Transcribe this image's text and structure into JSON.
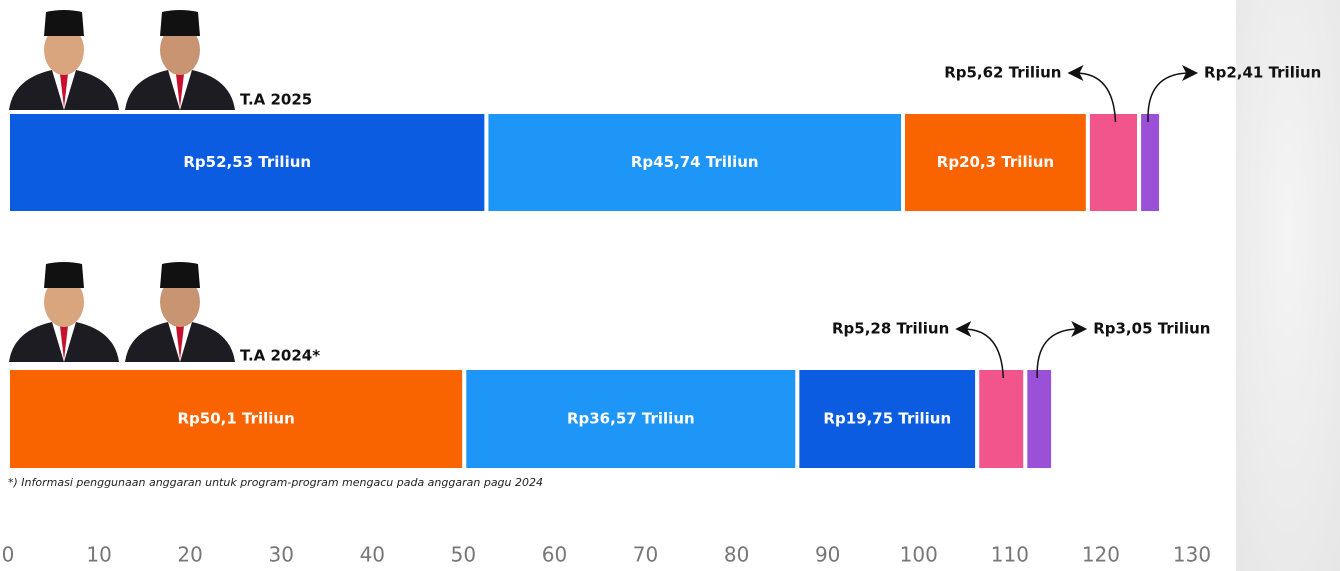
{
  "chart_data": {
    "type": "stacked-barh",
    "categories": [
      "T.A 2025",
      "T.A 2024*"
    ],
    "stacks": [
      {
        "values": [
          52.53,
          45.74,
          20.3,
          5.62,
          2.41
        ],
        "value_labels": [
          "Rp52,53 Triliun",
          "Rp45,74 Triliun",
          "Rp20,3 Triliun",
          "Rp5,62 Triliun",
          "Rp2,41 Triliun"
        ],
        "colors": [
          "#0b5ce0",
          "#1e96f7",
          "#fa6400",
          "#f2558c",
          "#9b50d8"
        ]
      },
      {
        "values": [
          50.1,
          36.57,
          19.75,
          5.28,
          3.05
        ],
        "value_labels": [
          "Rp50,1 Triliun",
          "Rp36,57 Triliun",
          "Rp19,75 Triliun",
          "Rp5,28 Triliun",
          "Rp3,05 Triliun"
        ],
        "colors": [
          "#fa6400",
          "#1e96f7",
          "#0b5ce0",
          "#f2558c",
          "#9b50d8"
        ]
      }
    ],
    "footnote": "*) Informasi penggunaan anggaran untuk program-program mengacu pada anggaran pagu 2024",
    "xlim": [
      0,
      130
    ],
    "xticks": [
      0,
      10,
      20,
      30,
      40,
      50,
      60,
      70,
      80,
      90,
      100,
      110,
      120,
      130
    ]
  }
}
